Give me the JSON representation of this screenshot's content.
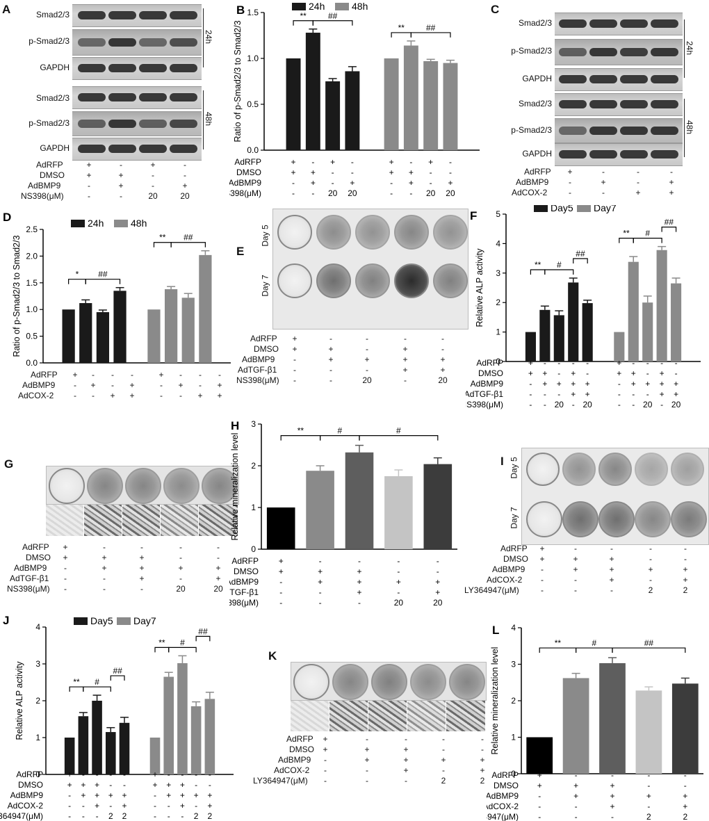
{
  "panel_letters": {
    "A": "A",
    "B": "B",
    "C": "C",
    "D": "D",
    "E": "E",
    "F": "F",
    "G": "G",
    "H": "H",
    "I": "I",
    "J": "J",
    "K": "K",
    "L": "L"
  },
  "blot_labels": {
    "smad": "Smad2/3",
    "psmad": "p-Smad2/3",
    "gapdh": "GAPDH",
    "t24": "24h",
    "t48": "48h"
  },
  "day_labels": {
    "day5": "Day 5",
    "day7": "Day 7"
  },
  "row_labels": {
    "adrfp": "AdRFP",
    "dmso": "DMSO",
    "adbmp9": "AdBMP9",
    "ns398": "NS398(μM)",
    "adcox2": "AdCOX-2",
    "adtgf": "AdTGF-β1",
    "ly": "LY364947(μM)"
  },
  "tables": {
    "A": {
      "adrfp": [
        "+",
        "-",
        "+",
        "-"
      ],
      "dmso": [
        "+",
        "+",
        "-",
        "-"
      ],
      "adbmp9": [
        "-",
        "+",
        "-",
        "+"
      ],
      "ns398": [
        "-",
        "-",
        "20",
        "20"
      ]
    },
    "C": {
      "adrfp": [
        "+",
        "-",
        "-",
        "-"
      ],
      "adbmp9": [
        "-",
        "+",
        "-",
        "+"
      ],
      "adcox2": [
        "-",
        "-",
        "+",
        "+"
      ]
    },
    "D": {
      "adrfp": [
        "+",
        "-",
        "-",
        "-",
        "+",
        "-",
        "-",
        "-"
      ],
      "adbmp9": [
        "-",
        "+",
        "-",
        "+",
        "-",
        "+",
        "-",
        "+"
      ],
      "adcox2": [
        "-",
        "-",
        "+",
        "+",
        "-",
        "-",
        "+",
        "+"
      ]
    },
    "E": {
      "adrfp": [
        "+",
        "-",
        "-",
        "-",
        "-"
      ],
      "dmso": [
        "+",
        "+",
        "-",
        "+",
        "-"
      ],
      "adbmp9": [
        "-",
        "+",
        "+",
        "+",
        "+"
      ],
      "adtgf": [
        "-",
        "-",
        "-",
        "+",
        "+"
      ],
      "ns398": [
        "-",
        "-",
        "20",
        "-",
        "20"
      ]
    },
    "G": {
      "adrfp": [
        "+",
        "-",
        "-",
        "-",
        "-"
      ],
      "dmso": [
        "+",
        "+",
        "+",
        "-",
        "-"
      ],
      "adbmp9": [
        "-",
        "+",
        "+",
        "+",
        "+"
      ],
      "adtgf": [
        "-",
        "-",
        "+",
        "-",
        "+"
      ],
      "ns398": [
        "-",
        "-",
        "-",
        "20",
        "20"
      ]
    },
    "I": {
      "adrfp": [
        "+",
        "-",
        "-",
        "-",
        "-"
      ],
      "dmso": [
        "+",
        "+",
        "+",
        "-",
        "-"
      ],
      "adbmp9": [
        "-",
        "+",
        "+",
        "+",
        "+"
      ],
      "adcox2": [
        "-",
        "-",
        "+",
        "-",
        "+"
      ],
      "ly": [
        "-",
        "-",
        "-",
        "2",
        "2"
      ]
    },
    "K": {
      "adrfp": [
        "+",
        "-",
        "-",
        "-",
        "-"
      ],
      "dmso": [
        "+",
        "+",
        "+",
        "-",
        "-"
      ],
      "adbmp9": [
        "-",
        "+",
        "+",
        "+",
        "+"
      ],
      "adcox2": [
        "-",
        "-",
        "+",
        "-",
        "+"
      ],
      "ly": [
        "-",
        "-",
        "-",
        "2",
        "2"
      ]
    }
  },
  "chart_data": [
    {
      "id": "B",
      "type": "bar",
      "ylabel": "Ratio of p-Smad2/3 to Smad2/3",
      "ylim": [
        0,
        1.5
      ],
      "yticks": [
        "0.0",
        "0.5",
        "1.0",
        "1.5"
      ],
      "legend_placement": "top",
      "series": [
        {
          "name": "24h",
          "color": "#1a1a1a",
          "values": [
            1.0,
            1.28,
            0.75,
            0.86
          ]
        },
        {
          "name": "48h",
          "color": "#8a8a8a",
          "values": [
            1.0,
            1.14,
            0.97,
            0.95
          ]
        }
      ],
      "errors": [
        [
          0,
          0.04,
          0.03,
          0.05
        ],
        [
          0,
          0.05,
          0.02,
          0.03
        ]
      ],
      "significance": [
        "**",
        "##",
        "**",
        "##"
      ],
      "table": {
        "adrfp": [
          "+",
          "-",
          "+",
          "-",
          "+",
          "-",
          "+",
          "-"
        ],
        "dmso": [
          "+",
          "+",
          "-",
          "-",
          "+",
          "+",
          "-",
          "-"
        ],
        "adbmp9": [
          "-",
          "+",
          "-",
          "+",
          "-",
          "+",
          "-",
          "+"
        ],
        "ns398": [
          "-",
          "-",
          "20",
          "20",
          "-",
          "-",
          "20",
          "20"
        ]
      }
    },
    {
      "id": "D",
      "type": "bar",
      "ylabel": "Ratio of p-Smad2/3 to Smad2/3",
      "ylim": [
        0,
        2.5
      ],
      "yticks": [
        "0.0",
        "0.5",
        "1.0",
        "1.5",
        "2.0",
        "2.5"
      ],
      "legend_placement": "top",
      "series": [
        {
          "name": "24h",
          "color": "#1a1a1a",
          "values": [
            1.0,
            1.12,
            0.95,
            1.35
          ]
        },
        {
          "name": "48h",
          "color": "#8a8a8a",
          "values": [
            1.0,
            1.38,
            1.22,
            2.02
          ]
        }
      ],
      "errors": [
        [
          0,
          0.06,
          0.04,
          0.06
        ],
        [
          0,
          0.05,
          0.08,
          0.08
        ]
      ],
      "significance": [
        "*",
        "##",
        "**",
        "##"
      ]
    },
    {
      "id": "F",
      "type": "bar",
      "ylabel": "Relative ALP activity",
      "ylim": [
        0,
        5
      ],
      "yticks": [
        "0",
        "1",
        "2",
        "3",
        "4",
        "5"
      ],
      "legend_placement": "top",
      "series": [
        {
          "name": "Day5",
          "color": "#1a1a1a",
          "values": [
            1.0,
            1.75,
            1.57,
            2.68,
            1.98
          ]
        },
        {
          "name": "Day7",
          "color": "#8a8a8a",
          "values": [
            1.0,
            3.38,
            2.0,
            3.78,
            2.65
          ]
        }
      ],
      "errors": [
        [
          0,
          0.13,
          0.15,
          0.15,
          0.1
        ],
        [
          0,
          0.18,
          0.22,
          0.12,
          0.18
        ]
      ],
      "significance": [
        "**",
        "#",
        "##",
        "**",
        "#",
        "##"
      ],
      "table": {
        "adrfp": [
          "+",
          "-",
          "-",
          "-",
          "-",
          "+",
          "-",
          "-",
          "-",
          "-"
        ],
        "dmso": [
          "+",
          "+",
          "-",
          "+",
          "-",
          "+",
          "+",
          "-",
          "+",
          "-"
        ],
        "adbmp9": [
          "-",
          "+",
          "+",
          "+",
          "+",
          "-",
          "+",
          "+",
          "+",
          "+"
        ],
        "adtgf": [
          "-",
          "-",
          "-",
          "+",
          "+",
          "-",
          "-",
          "-",
          "+",
          "+"
        ],
        "ns398": [
          "-",
          "-",
          "20",
          "-",
          "20",
          "-",
          "-",
          "20",
          "-",
          "20"
        ]
      }
    },
    {
      "id": "H",
      "type": "bar",
      "ylabel": "Relative mineralization level",
      "ylim": [
        0,
        3
      ],
      "yticks": [
        "0",
        "1",
        "2",
        "3"
      ],
      "series": [
        {
          "name": "",
          "values": [
            1.0,
            1.88,
            2.32,
            1.75,
            2.04
          ]
        }
      ],
      "colors": [
        "#000000",
        "#8a8a8a",
        "#5e5e5e",
        "#c4c4c4",
        "#3c3c3c"
      ],
      "errors": [
        0,
        0.12,
        0.17,
        0.15,
        0.15
      ],
      "significance": [
        "**",
        "#",
        "#"
      ],
      "table": {
        "adrfp": [
          "+",
          "-",
          "-",
          "-",
          "-"
        ],
        "dmso": [
          "+",
          "+",
          "+",
          "-",
          "-"
        ],
        "adbmp9": [
          "-",
          "+",
          "+",
          "+",
          "+"
        ],
        "adtgf": [
          "-",
          "-",
          "+",
          "-",
          "+"
        ],
        "ns398": [
          "-",
          "-",
          "-",
          "20",
          "20"
        ]
      }
    },
    {
      "id": "J",
      "type": "bar",
      "ylabel": "Relative ALP activity",
      "ylim": [
        0,
        4
      ],
      "yticks": [
        "0",
        "1",
        "2",
        "3",
        "4"
      ],
      "legend_placement": "top",
      "series": [
        {
          "name": "Day5",
          "color": "#1a1a1a",
          "values": [
            1.0,
            1.58,
            2.0,
            1.15,
            1.4
          ]
        },
        {
          "name": "Day7",
          "color": "#8a8a8a",
          "values": [
            1.0,
            2.65,
            3.02,
            1.85,
            2.05
          ]
        }
      ],
      "errors": [
        [
          0,
          0.1,
          0.15,
          0.12,
          0.15
        ],
        [
          0,
          0.12,
          0.2,
          0.12,
          0.18
        ]
      ],
      "significance": [
        "**",
        "#",
        "##",
        "**",
        "#",
        "##"
      ],
      "table": {
        "adrfp": [
          "+",
          "-",
          "-",
          "-",
          "-",
          "+",
          "-",
          "-",
          "-",
          "-"
        ],
        "dmso": [
          "+",
          "+",
          "+",
          "-",
          "-",
          "+",
          "+",
          "+",
          "-",
          "-"
        ],
        "adbmp9": [
          "-",
          "+",
          "+",
          "+",
          "+",
          "-",
          "+",
          "+",
          "+",
          "+"
        ],
        "adcox2": [
          "-",
          "-",
          "+",
          "-",
          "+",
          "-",
          "-",
          "+",
          "-",
          "+"
        ],
        "ly": [
          "-",
          "-",
          "-",
          "2",
          "2",
          "-",
          "-",
          "-",
          "2",
          "2"
        ]
      }
    },
    {
      "id": "L",
      "type": "bar",
      "ylabel": "Relative mineralization level",
      "ylim": [
        0,
        4
      ],
      "yticks": [
        "0",
        "1",
        "2",
        "3",
        "4"
      ],
      "series": [
        {
          "name": "",
          "values": [
            1.0,
            2.62,
            3.03,
            2.28,
            2.47
          ]
        }
      ],
      "colors": [
        "#000000",
        "#8a8a8a",
        "#5e5e5e",
        "#c4c4c4",
        "#3c3c3c"
      ],
      "errors": [
        0,
        0.13,
        0.15,
        0.1,
        0.15
      ],
      "significance": [
        "**",
        "#",
        "##"
      ],
      "table": {
        "adrfp": [
          "+",
          "-",
          "-",
          "-",
          "-"
        ],
        "dmso": [
          "+",
          "+",
          "+",
          "-",
          "-"
        ],
        "adbmp9": [
          "-",
          "+",
          "+",
          "+",
          "+"
        ],
        "adcox2": [
          "-",
          "-",
          "+",
          "-",
          "+"
        ],
        "ly": [
          "-",
          "-",
          "-",
          "2",
          "2"
        ]
      }
    }
  ]
}
